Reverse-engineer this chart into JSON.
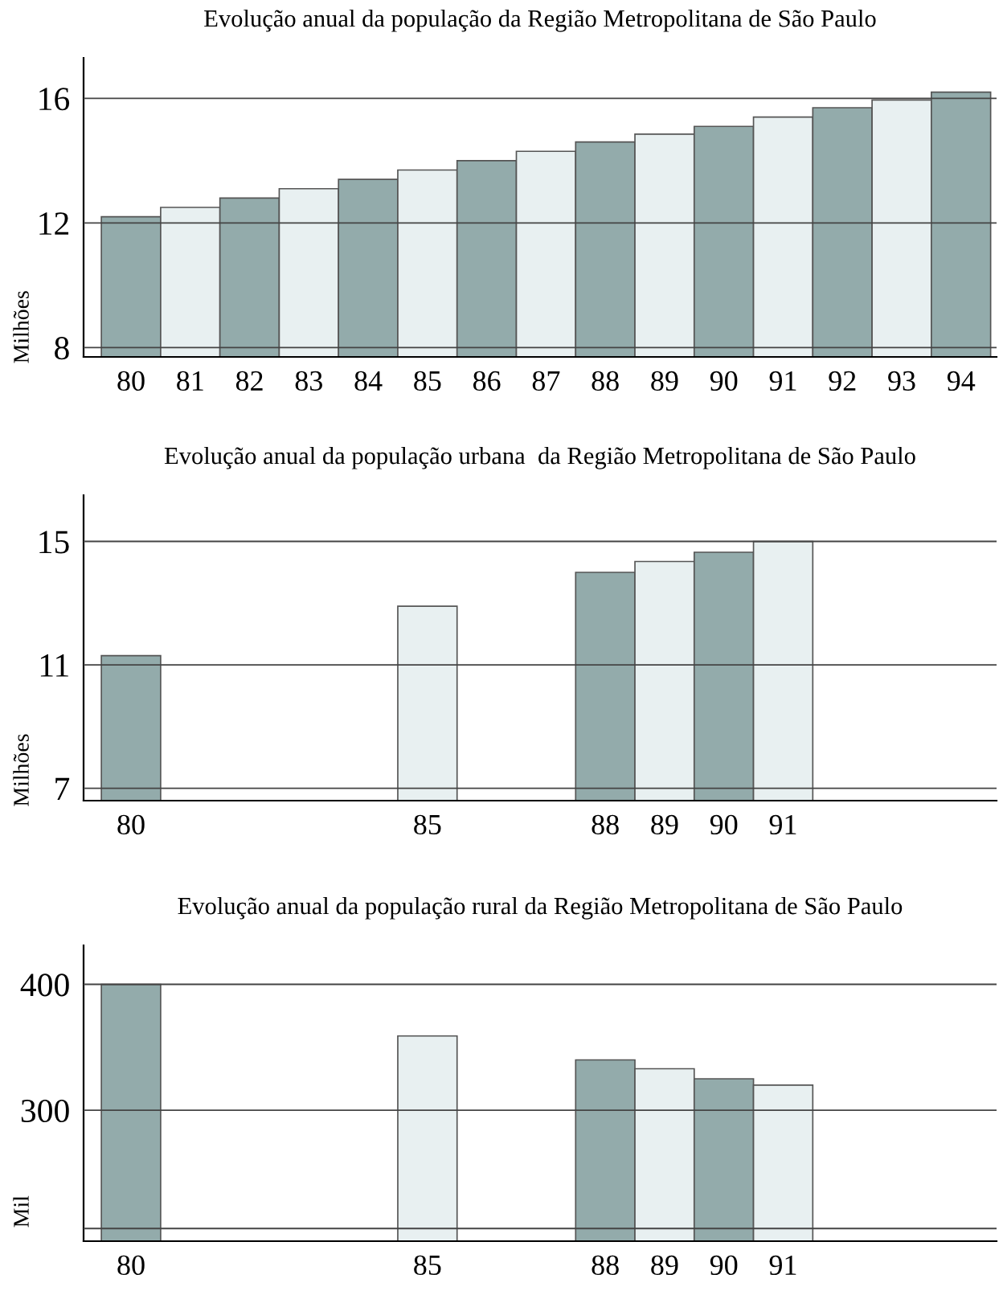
{
  "chart_data": [
    {
      "type": "bar",
      "title": "Evolução anual da população da Região Metropolitana de São Paulo",
      "ylabel": "Milhões",
      "x": [
        80,
        81,
        82,
        83,
        84,
        85,
        86,
        87,
        88,
        89,
        90,
        91,
        92,
        93,
        94
      ],
      "values": [
        12.2,
        12.5,
        12.8,
        13.1,
        13.4,
        13.7,
        14.0,
        14.3,
        14.6,
        14.85,
        15.1,
        15.4,
        15.7,
        15.95,
        16.2
      ],
      "colors": [
        "#93abab",
        "#e8f0f1",
        "#93abab",
        "#e8f0f1",
        "#93abab",
        "#e8f0f1",
        "#93abab",
        "#e8f0f1",
        "#93abab",
        "#e8f0f1",
        "#93abab",
        "#e8f0f1",
        "#93abab",
        "#e8f0f1",
        "#93abab"
      ],
      "xlim": [
        79.2,
        94.6
      ],
      "xticks": [
        80,
        81,
        82,
        83,
        84,
        85,
        86,
        87,
        88,
        89,
        90,
        91,
        92,
        93,
        94
      ],
      "ylim": [
        7.7,
        17.3
      ],
      "yticks": [
        8,
        12,
        16
      ],
      "grid": "y"
    },
    {
      "type": "bar",
      "title": "Evolução anual da população urbana  da Região Metropolitana de São Paulo",
      "ylabel": "Milhões",
      "x": [
        80,
        85,
        88,
        89,
        90,
        91
      ],
      "values": [
        11.3,
        12.9,
        14.0,
        14.35,
        14.65,
        15.0
      ],
      "colors": [
        "#93abab",
        "#e8f0f1",
        "#93abab",
        "#e8f0f1",
        "#93abab",
        "#e8f0f1"
      ],
      "xlim": [
        79.2,
        94.6
      ],
      "xticks": [
        80,
        85,
        88,
        89,
        90,
        91
      ],
      "ylim": [
        6.6,
        16.5
      ],
      "yticks": [
        7,
        11,
        15
      ],
      "grid": "y"
    },
    {
      "type": "bar",
      "title": "Evolução anual da população rural da Região Metropolitana de São Paulo",
      "ylabel": "Mil",
      "x": [
        80,
        85,
        88,
        89,
        90,
        91
      ],
      "values": [
        400,
        359,
        340,
        333,
        325,
        320
      ],
      "colors": [
        "#93abab",
        "#e8f0f1",
        "#93abab",
        "#e8f0f1",
        "#93abab",
        "#e8f0f1"
      ],
      "xlim": [
        79.2,
        94.6
      ],
      "xticks": [
        80,
        85,
        88,
        89,
        90,
        91
      ],
      "ylim": [
        196,
        431
      ],
      "yticks": [
        {
          "value": 206,
          "label": null
        },
        300,
        400
      ],
      "grid": "y"
    }
  ]
}
